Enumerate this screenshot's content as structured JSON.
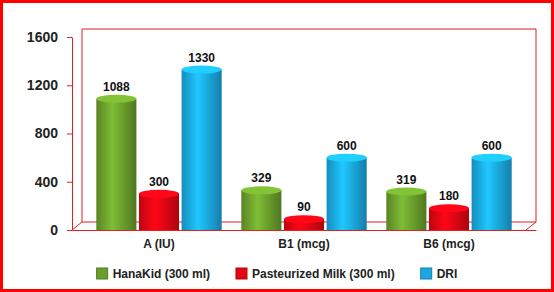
{
  "chart_data": {
    "type": "bar",
    "categories": [
      "A (IU)",
      "B1 (mcg)",
      "B6 (mcg)"
    ],
    "series": [
      {
        "name": "HanaKid (300 ml)",
        "color": "#6a9e2c",
        "values": [
          1088,
          329,
          319
        ]
      },
      {
        "name": "Pasteurized Milk (300 ml)",
        "color": "#e30613",
        "values": [
          300,
          90,
          180
        ]
      },
      {
        "name": "DRI",
        "color": "#1aa7e2",
        "values": [
          1330,
          600,
          600
        ]
      }
    ],
    "ylim": [
      0,
      1600
    ],
    "yticks": [
      0,
      400,
      800,
      1200,
      1600
    ],
    "grid": false,
    "legend": "bottom",
    "data_labels": true
  }
}
